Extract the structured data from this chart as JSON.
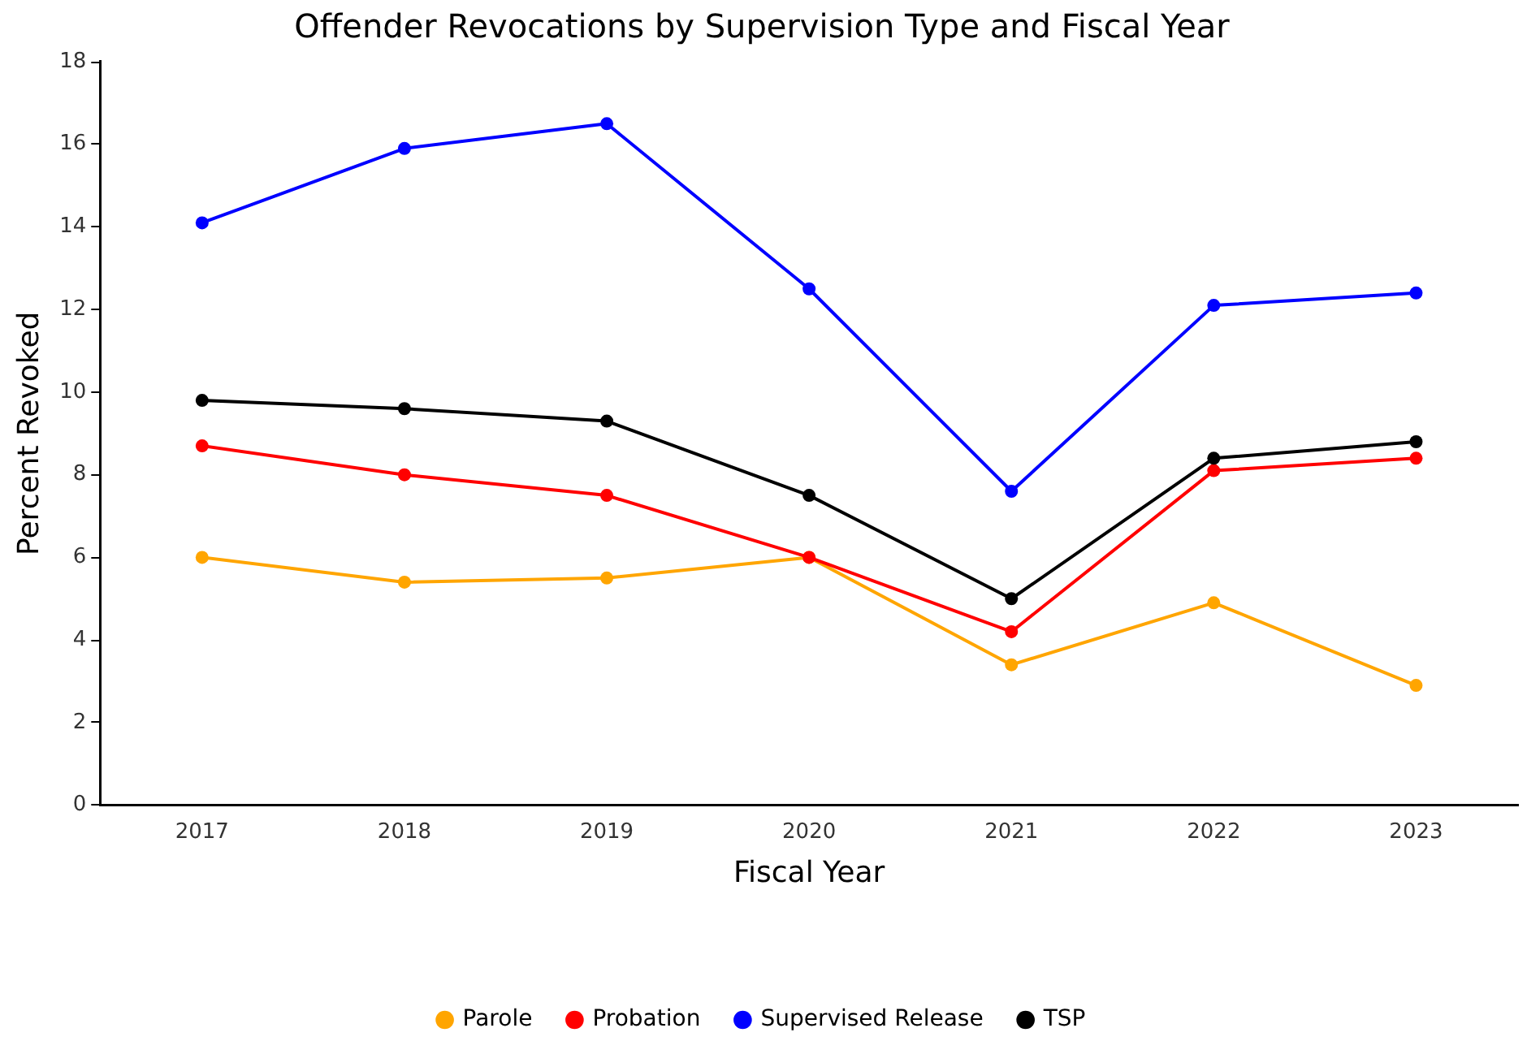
{
  "chart_data": {
    "type": "line",
    "title": "Offender Revocations by Supervision Type and Fiscal Year",
    "xlabel": "Fiscal Year",
    "ylabel": "Percent Revoked",
    "categories": [
      "2017",
      "2018",
      "2019",
      "2020",
      "2021",
      "2022",
      "2023"
    ],
    "series": [
      {
        "name": "Parole",
        "color": "#ffa500",
        "values": [
          6.0,
          5.4,
          5.5,
          6.0,
          3.4,
          4.9,
          2.9
        ]
      },
      {
        "name": "Probation",
        "color": "#ff0000",
        "values": [
          8.7,
          8.0,
          7.5,
          6.0,
          4.2,
          8.1,
          8.4
        ]
      },
      {
        "name": "Supervised Release",
        "color": "#0000ff",
        "values": [
          14.1,
          15.9,
          16.5,
          12.5,
          7.6,
          12.1,
          12.4
        ]
      },
      {
        "name": "TSP",
        "color": "#000000",
        "values": [
          9.8,
          9.6,
          9.3,
          7.5,
          5.0,
          8.4,
          8.8
        ]
      }
    ],
    "ylim": [
      0,
      18
    ],
    "yticks": [
      0,
      2,
      4,
      6,
      8,
      10,
      12,
      14,
      16,
      18
    ],
    "grid": false,
    "legend": "bottom",
    "marker": "circle",
    "line_style": "solid"
  }
}
